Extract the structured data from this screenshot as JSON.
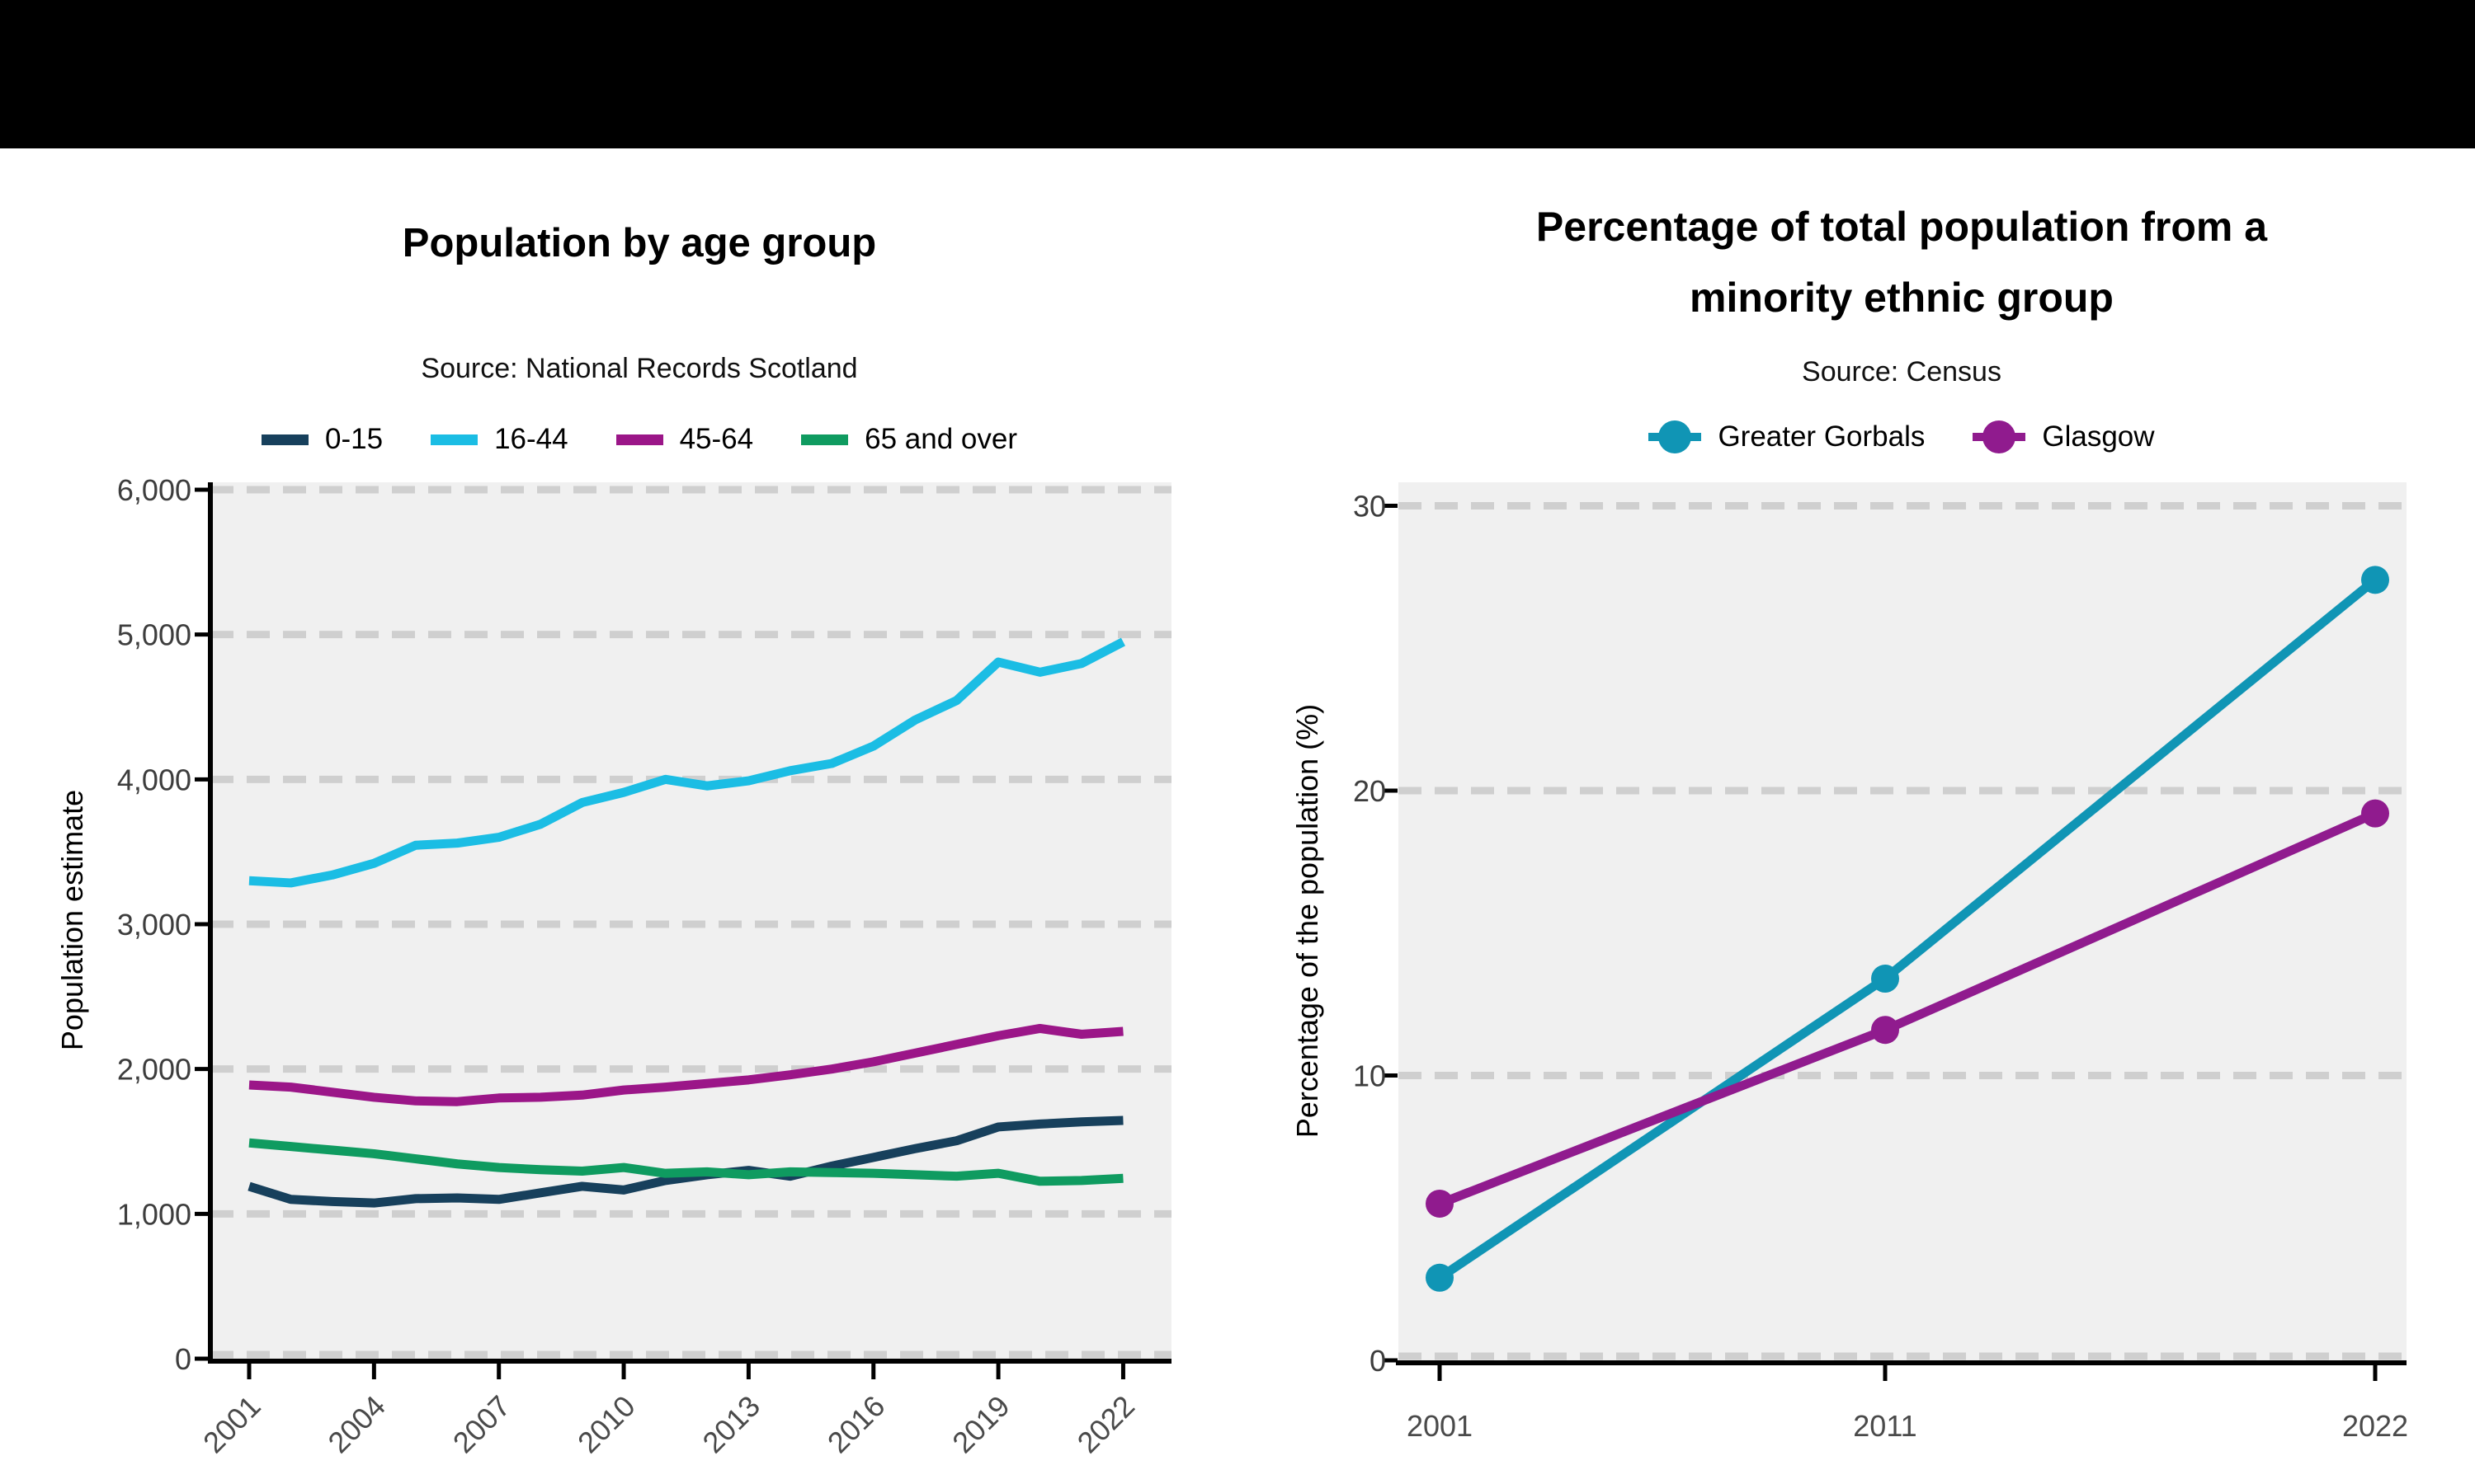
{
  "page": {
    "banner_color": "#000000",
    "background": "#ffffff"
  },
  "styles": {
    "plot_bg": "#f0f0f0",
    "grid_color": "#cfcfcf",
    "axis_color": "#000000",
    "tick_label_color": "#4a4a4a",
    "y_tick_label_color": "#3d3d3d"
  },
  "chart_data": [
    {
      "type": "line",
      "title": "Population by age group",
      "subtitle": "Source: National Records Scotland",
      "ylabel": "Population estimate",
      "xlabel": "",
      "ylim": [
        0,
        6000
      ],
      "grid": "horizontal-dashed",
      "legend_position": "top",
      "markers": false,
      "x": [
        2001,
        2002,
        2003,
        2004,
        2005,
        2006,
        2007,
        2008,
        2009,
        2010,
        2011,
        2012,
        2013,
        2014,
        2015,
        2016,
        2017,
        2018,
        2019,
        2020,
        2021,
        2022
      ],
      "xticks": {
        "values": [
          2001,
          2004,
          2007,
          2010,
          2013,
          2016,
          2019,
          2022
        ],
        "labels": [
          "2001",
          "2004",
          "2007",
          "2010",
          "2013",
          "2016",
          "2019",
          "2022"
        ]
      },
      "yticks": {
        "values": [
          0,
          1000,
          2000,
          3000,
          4000,
          5000,
          6000
        ],
        "labels": [
          "0",
          "1,000",
          "2,000",
          "3,000",
          "4,000",
          "5,000",
          "6,000"
        ]
      },
      "series": [
        {
          "name": "0-15",
          "color": "#17405c",
          "values": [
            1190,
            1100,
            1085,
            1075,
            1105,
            1110,
            1100,
            1145,
            1190,
            1165,
            1230,
            1270,
            1300,
            1260,
            1330,
            1390,
            1450,
            1505,
            1600,
            1620,
            1635,
            1645
          ]
        },
        {
          "name": "16-44",
          "color": "#1bbde4",
          "values": [
            3300,
            3285,
            3340,
            3420,
            3545,
            3560,
            3600,
            3690,
            3840,
            3910,
            4000,
            3955,
            3990,
            4060,
            4110,
            4230,
            4410,
            4545,
            4810,
            4740,
            4800,
            4950
          ]
        },
        {
          "name": "45-64",
          "color": "#9b1688",
          "values": [
            1890,
            1875,
            1840,
            1805,
            1780,
            1775,
            1800,
            1805,
            1820,
            1855,
            1875,
            1900,
            1925,
            1960,
            2000,
            2050,
            2110,
            2170,
            2230,
            2280,
            2240,
            2260
          ]
        },
        {
          "name": "65 and over",
          "color": "#0f9b60",
          "values": [
            1490,
            1465,
            1440,
            1415,
            1380,
            1345,
            1320,
            1305,
            1295,
            1320,
            1280,
            1290,
            1270,
            1290,
            1285,
            1280,
            1270,
            1260,
            1280,
            1225,
            1230,
            1245
          ]
        }
      ]
    },
    {
      "type": "line",
      "title_lines": [
        "Percentage of total population from a",
        "minority ethnic group"
      ],
      "subtitle": "Source: Census",
      "ylabel": "Percentage of the population (%)",
      "xlabel": "",
      "ylim": [
        0,
        30
      ],
      "grid": "horizontal-dashed",
      "legend_position": "top",
      "markers": true,
      "x": [
        2001,
        2011,
        2022
      ],
      "xticks": {
        "values": [
          2001,
          2011,
          2022
        ],
        "labels": [
          "2001",
          "2011",
          "2022"
        ]
      },
      "yticks": {
        "values": [
          0,
          10,
          20,
          30
        ],
        "labels": [
          "0",
          "10",
          "20",
          "30"
        ]
      },
      "series": [
        {
          "name": "Greater Gorbals",
          "color": "#1095b5",
          "values": [
            2.9,
            13.4,
            27.4
          ]
        },
        {
          "name": "Glasgow",
          "color": "#901b8e",
          "values": [
            5.5,
            11.6,
            19.2
          ]
        }
      ]
    }
  ]
}
